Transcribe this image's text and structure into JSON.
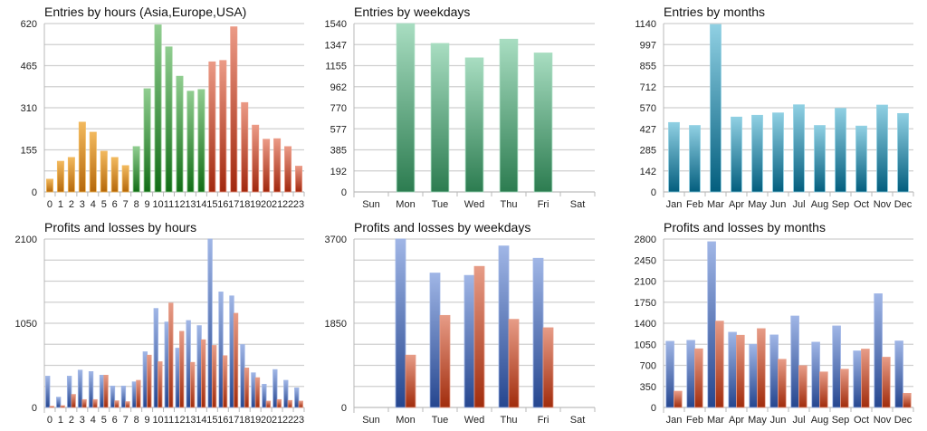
{
  "colors": {
    "hours_asia": [
      "#f2b95e",
      "#b5680a"
    ],
    "hours_europe": [
      "#90cd90",
      "#126d16"
    ],
    "hours_usa": [
      "#eb9a86",
      "#a1280e"
    ],
    "weekdays_entries": [
      "#a8ddc1",
      "#2c7c50"
    ],
    "months_entries": [
      "#90d0e3",
      "#035e7e"
    ],
    "profit": [
      "#a0b6e6",
      "#25468f"
    ],
    "loss": [
      "#e79c87",
      "#a12c0c"
    ]
  },
  "chart_data": [
    {
      "id": "entries-hours",
      "type": "bar",
      "title": "Entries by hours (Asia,Europe,USA)",
      "xlabel": "",
      "ylabel": "",
      "ylim": [
        0,
        620
      ],
      "yticks": [
        "0",
        "155",
        "310",
        "465",
        "620"
      ],
      "grid_lines": 8,
      "grid": true,
      "categories": [
        "0",
        "1",
        "2",
        "3",
        "4",
        "5",
        "6",
        "7",
        "8",
        "9",
        "10",
        "11",
        "12",
        "13",
        "14",
        "15",
        "16",
        "17",
        "18",
        "19",
        "20",
        "21",
        "22",
        "23"
      ],
      "regions": [
        "Asia",
        "Asia",
        "Asia",
        "Asia",
        "Asia",
        "Asia",
        "Asia",
        "Asia",
        "Europe",
        "Europe",
        "Europe",
        "Europe",
        "Europe",
        "Europe",
        "Europe",
        "USA",
        "USA",
        "USA",
        "USA",
        "USA",
        "USA",
        "USA",
        "USA",
        "USA"
      ],
      "series": [
        {
          "name": "Entries",
          "values": [
            47,
            113,
            127,
            257,
            220,
            150,
            127,
            97,
            167,
            380,
            615,
            534,
            426,
            371,
            377,
            479,
            484,
            608,
            329,
            246,
            194,
            196,
            167,
            95
          ]
        }
      ]
    },
    {
      "id": "entries-weekdays",
      "type": "bar",
      "title": "Entries by weekdays",
      "xlabel": "",
      "ylabel": "",
      "ylim": [
        0,
        1540
      ],
      "yticks": [
        "0",
        "192",
        "385",
        "577",
        "770",
        "962",
        "1155",
        "1347",
        "1540"
      ],
      "grid_lines": 8,
      "grid": true,
      "categories": [
        "Sun",
        "Mon",
        "Tue",
        "Wed",
        "Thu",
        "Fri",
        "Sat"
      ],
      "series": [
        {
          "name": "Entries",
          "values": [
            0,
            1540,
            1358,
            1226,
            1397,
            1271,
            0
          ]
        }
      ]
    },
    {
      "id": "entries-months",
      "type": "bar",
      "title": "Entries by months",
      "xlabel": "",
      "ylabel": "",
      "ylim": [
        0,
        1140
      ],
      "yticks": [
        "0",
        "142",
        "285",
        "427",
        "570",
        "712",
        "855",
        "997",
        "1140"
      ],
      "grid_lines": 8,
      "grid": true,
      "categories": [
        "Jan",
        "Feb",
        "Mar",
        "Apr",
        "May",
        "Jun",
        "Jul",
        "Aug",
        "Sep",
        "Oct",
        "Nov",
        "Dec"
      ],
      "series": [
        {
          "name": "Entries",
          "values": [
            470,
            450,
            1134,
            507,
            519,
            535,
            590,
            450,
            566,
            446,
            588,
            531
          ]
        }
      ]
    },
    {
      "id": "pl-hours",
      "type": "bar",
      "title": "Profits and losses by hours",
      "xlabel": "",
      "ylabel": "",
      "ylim": [
        0,
        2100
      ],
      "yticks": [
        "0",
        "1050",
        "2100"
      ],
      "grid_lines": 8,
      "grid": true,
      "categories": [
        "0",
        "1",
        "2",
        "3",
        "4",
        "5",
        "6",
        "7",
        "8",
        "9",
        "10",
        "11",
        "12",
        "13",
        "14",
        "15",
        "16",
        "17",
        "18",
        "19",
        "20",
        "21",
        "22",
        "23"
      ],
      "series": [
        {
          "name": "Profits",
          "values": [
            390,
            128,
            390,
            465,
            447,
            402,
            267,
            267,
            319,
            694,
            1234,
            1065,
            739,
            1084,
            1020,
            2100,
            1440,
            1391,
            784,
            432,
            289,
            472,
            338,
            244
          ]
        },
        {
          "name": "Losses",
          "values": [
            15,
            22,
            162,
            98,
            98,
            402,
            83,
            72,
            338,
            652,
            570,
            1301,
            949,
            562,
            844,
            773,
            645,
            1174,
            492,
            371,
            79,
            98,
            87,
            79
          ]
        }
      ]
    },
    {
      "id": "pl-weekdays",
      "type": "bar",
      "title": "Profits and losses by weekdays",
      "xlabel": "",
      "ylabel": "",
      "ylim": [
        0,
        3700
      ],
      "yticks": [
        "0",
        "1850",
        "3700"
      ],
      "grid_lines": 8,
      "grid": true,
      "categories": [
        "Sun",
        "Mon",
        "Tue",
        "Wed",
        "Thu",
        "Fri",
        "Sat"
      ],
      "series": [
        {
          "name": "Profits",
          "values": [
            0,
            3700,
            2953,
            2901,
            3548,
            3277,
            0
          ]
        },
        {
          "name": "Losses",
          "values": [
            0,
            1150,
            2022,
            3099,
            1936,
            1751,
            0
          ]
        }
      ]
    },
    {
      "id": "pl-months",
      "type": "bar",
      "title": "Profits and losses by months",
      "xlabel": "",
      "ylabel": "",
      "ylim": [
        0,
        2800
      ],
      "yticks": [
        "0",
        "350",
        "700",
        "1050",
        "1400",
        "1750",
        "2100",
        "2450",
        "2800"
      ],
      "grid_lines": 8,
      "grid": true,
      "categories": [
        "Jan",
        "Feb",
        "Mar",
        "Apr",
        "May",
        "Jun",
        "Jul",
        "Aug",
        "Sep",
        "Oct",
        "Nov",
        "Dec"
      ],
      "series": [
        {
          "name": "Profits",
          "values": [
            1100,
            1115,
            2755,
            1250,
            1050,
            1205,
            1520,
            1085,
            1355,
            940,
            1890,
            1105
          ]
        },
        {
          "name": "Losses",
          "values": [
            270,
            975,
            1435,
            1200,
            1310,
            800,
            695,
            590,
            635,
            970,
            835,
            235
          ]
        }
      ]
    }
  ]
}
